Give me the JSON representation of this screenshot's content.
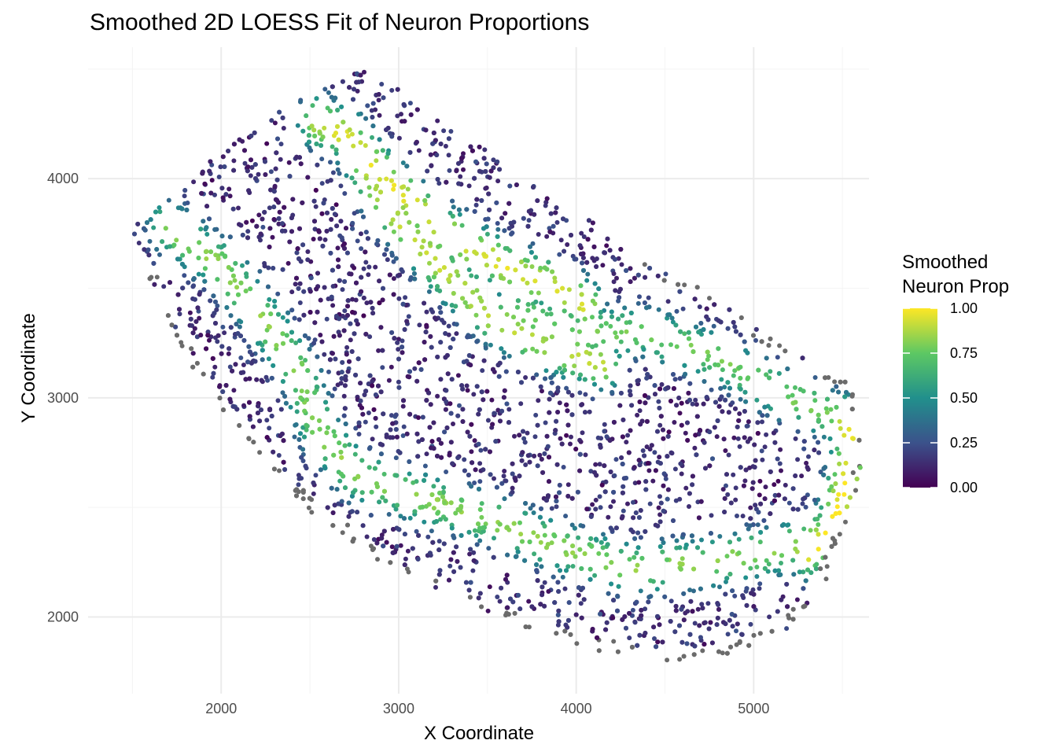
{
  "chart_data": {
    "type": "scatter",
    "title": "Smoothed 2D LOESS Fit of Neuron Proportions",
    "xlabel": "X Coordinate",
    "ylabel": "Y Coordinate",
    "xlim": [
      1250,
      5650
    ],
    "ylim": [
      1650,
      4600
    ],
    "x_ticks": [
      2000,
      3000,
      4000,
      5000
    ],
    "y_ticks": [
      2000,
      3000,
      4000
    ],
    "grid": true,
    "point_color_na": "#6b6b6b",
    "colorbar": {
      "title_lines": [
        "Smoothed",
        "Neuron Prop"
      ],
      "ticks": [
        "0.00",
        "0.25",
        "0.50",
        "0.75",
        "1.00"
      ],
      "range": [
        0,
        1
      ],
      "colors": [
        "#440154",
        "#3b528b",
        "#21908c",
        "#5dc863",
        "#fde725"
      ],
      "placement": "right"
    },
    "region_outline": {
      "outer_boundary": [
        [
          1500,
          3780
        ],
        [
          1620,
          3880
        ],
        [
          1780,
          4000
        ],
        [
          2000,
          4150
        ],
        [
          2300,
          4300
        ],
        [
          2600,
          4430
        ],
        [
          2800,
          4520
        ],
        [
          2950,
          4450
        ],
        [
          3200,
          4300
        ],
        [
          3500,
          4150
        ],
        [
          3800,
          3950
        ],
        [
          4100,
          3800
        ],
        [
          4400,
          3620
        ],
        [
          4700,
          3500
        ],
        [
          5000,
          3340
        ],
        [
          5300,
          3180
        ],
        [
          5560,
          3090
        ],
        [
          5630,
          2900
        ],
        [
          5600,
          2650
        ],
        [
          5520,
          2400
        ],
        [
          5400,
          2150
        ],
        [
          5200,
          1950
        ],
        [
          4900,
          1830
        ],
        [
          4500,
          1790
        ],
        [
          4100,
          1850
        ],
        [
          3700,
          1950
        ],
        [
          3300,
          2100
        ],
        [
          2900,
          2250
        ],
        [
          2500,
          2480
        ],
        [
          2200,
          2750
        ],
        [
          1900,
          3050
        ],
        [
          1700,
          3350
        ],
        [
          1560,
          3600
        ]
      ],
      "neuron_bands": [
        {
          "path": [
            [
              2550,
              4260
            ],
            [
              2700,
              4200
            ],
            [
              2950,
              3980
            ],
            [
              3250,
              3760
            ],
            [
              3600,
              3600
            ],
            [
              3900,
              3500
            ],
            [
              4050,
              3420
            ]
          ],
          "level": 0.95
        },
        {
          "path": [
            [
              2750,
              4150
            ],
            [
              2950,
              3850
            ],
            [
              3250,
              3580
            ],
            [
              3550,
              3350
            ],
            [
              3850,
              3230
            ],
            [
              4150,
              3150
            ]
          ],
          "level": 0.9
        },
        {
          "path": [
            [
              3700,
              3380
            ],
            [
              4000,
              3300
            ],
            [
              4400,
              3300
            ],
            [
              4800,
              3180
            ],
            [
              5150,
              3020
            ],
            [
              5450,
              2920
            ]
          ],
          "level": 0.78
        },
        {
          "path": [
            [
              5520,
              2900
            ],
            [
              5560,
              2780
            ],
            [
              5520,
              2600
            ],
            [
              5450,
              2400
            ],
            [
              5300,
              2300
            ]
          ],
          "level": 1.0
        },
        {
          "path": [
            [
              1700,
              3780
            ],
            [
              2000,
              3600
            ],
            [
              2250,
              3350
            ],
            [
              2450,
              3100
            ],
            [
              2550,
              2850
            ],
            [
              2750,
              2650
            ],
            [
              3100,
              2550
            ],
            [
              3500,
              2450
            ],
            [
              3900,
              2320
            ],
            [
              4300,
              2220
            ],
            [
              4700,
              2240
            ],
            [
              5100,
              2300
            ],
            [
              5350,
              2350
            ]
          ],
          "level": 0.82
        }
      ]
    }
  }
}
